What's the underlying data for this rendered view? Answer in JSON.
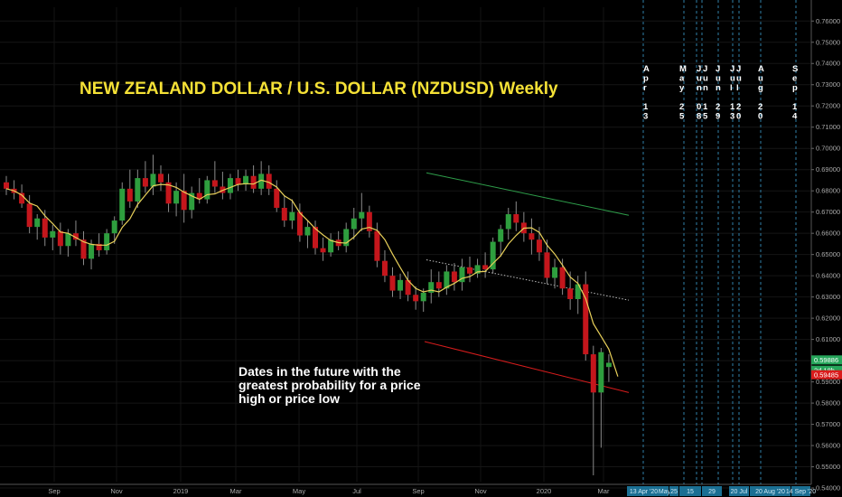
{
  "chart_data": {
    "type": "candlestick",
    "title": "NEW ZEALAND DOLLAR / U.S. DOLLAR (NZDUSD) Weekly",
    "annotation": "Dates in the future with the greatest probability for a price high or price low",
    "y_axis": {
      "ylim": [
        0.543,
        0.7665
      ],
      "ticks": [
        "0.76000",
        "0.75000",
        "0.74000",
        "0.73000",
        "0.72000",
        "0.71000",
        "0.70000",
        "0.69000",
        "0.68000",
        "0.67000",
        "0.66000",
        "0.65000",
        "0.64000",
        "0.63000",
        "0.62000",
        "0.61000",
        "0.60000",
        "0.59000",
        "0.58000",
        "0.57000",
        "0.56000",
        "0.55000",
        "0.54000"
      ]
    },
    "x_axis": {
      "labels": [
        "Sep",
        "Nov",
        "2019",
        "Mar",
        "May",
        "Jul",
        "Sep",
        "Nov",
        "2020",
        "Mar"
      ]
    },
    "price_labels": [
      {
        "text": "0.59886",
        "value": 0.59886,
        "color": "#26a65b"
      },
      {
        "text": "2d 18h",
        "value": 0.5955,
        "color": "#26a65b"
      },
      {
        "text": "0.59485",
        "value": 0.59485,
        "color": "#d91c1c"
      }
    ],
    "future_dates": [
      {
        "label": [
          "A",
          "p",
          "r",
          "",
          "1",
          "3"
        ],
        "axis_label": "13 Apr '20"
      },
      {
        "label": [
          "M",
          "a",
          "y",
          "",
          "2",
          "5"
        ],
        "axis_label": "May"
      },
      {
        "label": [
          "J",
          "u",
          "n",
          "",
          "0",
          "8"
        ],
        "axis_label": "25"
      },
      {
        "label": [
          "J",
          "u",
          "n",
          "",
          "1",
          "5"
        ],
        "axis_label": "15"
      },
      {
        "label": [
          "J",
          "u",
          "n",
          "",
          "2",
          "9"
        ],
        "axis_label": "29"
      },
      {
        "label": [
          "J",
          "u",
          "l",
          "",
          "1",
          "3"
        ],
        "axis_label": ""
      },
      {
        "label": [
          "J",
          "u",
          "l",
          "",
          "2",
          "0"
        ],
        "axis_label": "20 Jul"
      },
      {
        "label": [
          "A",
          "u",
          "g",
          "",
          "2",
          "0"
        ],
        "axis_label": "20 Aug '20"
      },
      {
        "label": [
          "S",
          "e",
          "p",
          "",
          "1",
          "4"
        ],
        "axis_label": "14 Sep '20"
      }
    ],
    "trendlines": [
      {
        "color": "#2e9e4a",
        "dashed": false,
        "from": [
          0.0,
          0.6885
        ],
        "to": [
          1.0,
          0.6685
        ]
      },
      {
        "color": "#bdbdbd",
        "dashed": true,
        "from": [
          0.0,
          0.6475
        ],
        "to": [
          1.0,
          0.6285
        ]
      },
      {
        "color": "#d91c1c",
        "dashed": false,
        "from": [
          0.0,
          0.609
        ],
        "to": [
          1.0,
          0.585
        ]
      }
    ],
    "candles": [
      [
        0.684,
        0.687,
        0.678,
        0.681
      ],
      [
        0.681,
        0.685,
        0.676,
        0.679
      ],
      [
        0.679,
        0.683,
        0.672,
        0.674
      ],
      [
        0.674,
        0.678,
        0.66,
        0.663
      ],
      [
        0.663,
        0.669,
        0.657,
        0.667
      ],
      [
        0.667,
        0.671,
        0.654,
        0.658
      ],
      [
        0.658,
        0.664,
        0.652,
        0.661
      ],
      [
        0.661,
        0.665,
        0.65,
        0.654
      ],
      [
        0.654,
        0.662,
        0.649,
        0.66
      ],
      [
        0.66,
        0.666,
        0.654,
        0.657
      ],
      [
        0.657,
        0.661,
        0.645,
        0.648
      ],
      [
        0.648,
        0.657,
        0.643,
        0.655
      ],
      [
        0.655,
        0.66,
        0.649,
        0.652
      ],
      [
        0.652,
        0.662,
        0.65,
        0.66
      ],
      [
        0.66,
        0.668,
        0.655,
        0.666
      ],
      [
        0.666,
        0.684,
        0.664,
        0.681
      ],
      [
        0.681,
        0.69,
        0.672,
        0.675
      ],
      [
        0.675,
        0.69,
        0.672,
        0.686
      ],
      [
        0.686,
        0.694,
        0.679,
        0.682
      ],
      [
        0.682,
        0.697,
        0.678,
        0.688
      ],
      [
        0.688,
        0.692,
        0.68,
        0.684
      ],
      [
        0.684,
        0.688,
        0.67,
        0.674
      ],
      [
        0.674,
        0.684,
        0.668,
        0.68
      ],
      [
        0.68,
        0.688,
        0.665,
        0.671
      ],
      [
        0.671,
        0.682,
        0.667,
        0.679
      ],
      [
        0.679,
        0.686,
        0.674,
        0.676
      ],
      [
        0.676,
        0.687,
        0.674,
        0.685
      ],
      [
        0.685,
        0.694,
        0.679,
        0.682
      ],
      [
        0.682,
        0.689,
        0.676,
        0.679
      ],
      [
        0.679,
        0.688,
        0.676,
        0.686
      ],
      [
        0.686,
        0.69,
        0.68,
        0.683
      ],
      [
        0.683,
        0.69,
        0.68,
        0.687
      ],
      [
        0.687,
        0.692,
        0.679,
        0.681
      ],
      [
        0.681,
        0.694,
        0.678,
        0.688
      ],
      [
        0.688,
        0.692,
        0.678,
        0.681
      ],
      [
        0.681,
        0.685,
        0.67,
        0.672
      ],
      [
        0.672,
        0.678,
        0.663,
        0.666
      ],
      [
        0.666,
        0.676,
        0.662,
        0.67
      ],
      [
        0.67,
        0.674,
        0.656,
        0.659
      ],
      [
        0.659,
        0.666,
        0.653,
        0.663
      ],
      [
        0.663,
        0.666,
        0.65,
        0.653
      ],
      [
        0.653,
        0.658,
        0.647,
        0.651
      ],
      [
        0.651,
        0.66,
        0.649,
        0.657
      ],
      [
        0.657,
        0.661,
        0.652,
        0.654
      ],
      [
        0.654,
        0.665,
        0.651,
        0.662
      ],
      [
        0.662,
        0.672,
        0.657,
        0.667
      ],
      [
        0.667,
        0.679,
        0.661,
        0.67
      ],
      [
        0.67,
        0.673,
        0.658,
        0.661
      ],
      [
        0.661,
        0.665,
        0.644,
        0.647
      ],
      [
        0.647,
        0.652,
        0.637,
        0.64
      ],
      [
        0.64,
        0.644,
        0.63,
        0.633
      ],
      [
        0.633,
        0.641,
        0.629,
        0.638
      ],
      [
        0.638,
        0.642,
        0.628,
        0.631
      ],
      [
        0.631,
        0.635,
        0.624,
        0.628
      ],
      [
        0.628,
        0.634,
        0.623,
        0.632
      ],
      [
        0.632,
        0.643,
        0.627,
        0.637
      ],
      [
        0.637,
        0.642,
        0.63,
        0.634
      ],
      [
        0.634,
        0.645,
        0.631,
        0.642
      ],
      [
        0.642,
        0.646,
        0.633,
        0.637
      ],
      [
        0.637,
        0.648,
        0.633,
        0.644
      ],
      [
        0.644,
        0.649,
        0.637,
        0.641
      ],
      [
        0.641,
        0.648,
        0.639,
        0.645
      ],
      [
        0.645,
        0.651,
        0.639,
        0.643
      ],
      [
        0.643,
        0.658,
        0.641,
        0.656
      ],
      [
        0.656,
        0.664,
        0.649,
        0.662
      ],
      [
        0.662,
        0.672,
        0.657,
        0.669
      ],
      [
        0.669,
        0.675,
        0.661,
        0.665
      ],
      [
        0.665,
        0.67,
        0.656,
        0.66
      ],
      [
        0.66,
        0.667,
        0.65,
        0.657
      ],
      [
        0.657,
        0.663,
        0.647,
        0.651
      ],
      [
        0.651,
        0.657,
        0.636,
        0.639
      ],
      [
        0.639,
        0.648,
        0.634,
        0.644
      ],
      [
        0.644,
        0.648,
        0.631,
        0.634
      ],
      [
        0.634,
        0.642,
        0.624,
        0.629
      ],
      [
        0.629,
        0.64,
        0.622,
        0.636
      ],
      [
        0.636,
        0.642,
        0.6,
        0.603
      ],
      [
        0.603,
        0.607,
        0.546,
        0.585
      ],
      [
        0.585,
        0.606,
        0.559,
        0.604
      ],
      [
        0.597,
        0.603,
        0.59,
        0.599
      ]
    ]
  }
}
